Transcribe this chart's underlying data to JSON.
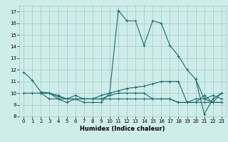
{
  "title": "",
  "xlabel": "Humidex (Indice chaleur)",
  "bg_color": "#ceecea",
  "grid_color": "#aacfcc",
  "line_color": "#1a6b6b",
  "xlim": [
    -0.5,
    23.5
  ],
  "ylim": [
    8.0,
    17.5
  ],
  "yticks": [
    8,
    9,
    10,
    11,
    12,
    13,
    14,
    15,
    16,
    17
  ],
  "xticks": [
    0,
    1,
    2,
    3,
    4,
    5,
    6,
    7,
    8,
    9,
    10,
    11,
    12,
    13,
    14,
    15,
    16,
    17,
    18,
    19,
    20,
    21,
    22,
    23
  ],
  "lines": [
    {
      "x": [
        0,
        1,
        2,
        3,
        4,
        5,
        6,
        7,
        8,
        9,
        10,
        11,
        12,
        13,
        14,
        15,
        16,
        17,
        18,
        19,
        20,
        21,
        22,
        23
      ],
      "y": [
        11.8,
        11.1,
        10.1,
        10.0,
        9.5,
        9.2,
        9.5,
        9.2,
        9.2,
        9.2,
        10.0,
        17.1,
        16.2,
        16.2,
        14.1,
        16.2,
        16.0,
        14.1,
        13.2,
        12.0,
        11.2,
        9.5,
        9.8,
        9.5
      ]
    },
    {
      "x": [
        0,
        1,
        2,
        3,
        4,
        5,
        6,
        7,
        8,
        9,
        10,
        11,
        12,
        13,
        14,
        15,
        16,
        17,
        18,
        19,
        20,
        21,
        22,
        23
      ],
      "y": [
        10.0,
        10.0,
        10.0,
        10.0,
        9.8,
        9.5,
        9.5,
        9.5,
        9.5,
        9.8,
        10.0,
        10.2,
        10.4,
        10.5,
        10.6,
        10.8,
        11.0,
        11.0,
        11.0,
        9.2,
        9.5,
        9.5,
        9.2,
        10.0
      ]
    },
    {
      "x": [
        2,
        3,
        4,
        5,
        6,
        7,
        8,
        9,
        10,
        11,
        12,
        13,
        14,
        15,
        16,
        17,
        18,
        19,
        20,
        21,
        22,
        23
      ],
      "y": [
        10.0,
        10.0,
        9.7,
        9.5,
        9.8,
        9.5,
        9.5,
        9.5,
        9.8,
        10.0,
        10.0,
        10.0,
        10.0,
        9.5,
        9.5,
        9.5,
        9.2,
        9.2,
        9.2,
        9.8,
        9.2,
        9.2
      ]
    },
    {
      "x": [
        2,
        3,
        4,
        5,
        6,
        7,
        8,
        9,
        10,
        11,
        12,
        13,
        14,
        15,
        16,
        17,
        18,
        19,
        20,
        21,
        22,
        23
      ],
      "y": [
        10.0,
        9.5,
        9.5,
        9.5,
        9.5,
        9.5,
        9.5,
        9.5,
        9.5,
        9.5,
        9.5,
        9.5,
        9.5,
        9.5,
        9.5,
        9.5,
        9.2,
        9.2,
        9.2,
        9.2,
        9.2,
        9.2
      ]
    },
    {
      "x": [
        20,
        21,
        22,
        23
      ],
      "y": [
        11.2,
        8.2,
        9.5,
        10.0
      ]
    }
  ]
}
